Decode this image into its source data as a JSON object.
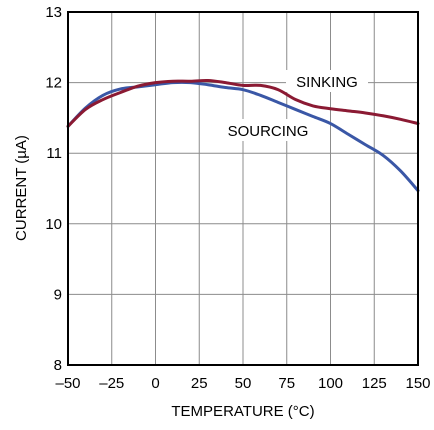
{
  "chart_data": {
    "type": "line",
    "title": "",
    "xlabel": "TEMPERATURE (°C)",
    "ylabel": "CURRENT (µA)",
    "xlim": [
      -50,
      150
    ],
    "ylim": [
      8,
      13
    ],
    "x_ticks": [
      -50,
      -25,
      0,
      25,
      50,
      75,
      100,
      125,
      150
    ],
    "x_tick_labels": [
      "–50",
      "–25",
      "0",
      "25",
      "50",
      "75",
      "100",
      "125",
      "150"
    ],
    "y_ticks": [
      8,
      9,
      10,
      11,
      12,
      13
    ],
    "y_tick_labels": [
      "8",
      "9",
      "10",
      "11",
      "12",
      "13"
    ],
    "grid": true,
    "legend": "inline labels",
    "series": [
      {
        "name": "SINKING",
        "color": "#8b1a33",
        "x": [
          -50,
          -40,
          -30,
          -20,
          -10,
          0,
          10,
          20,
          30,
          40,
          50,
          60,
          70,
          80,
          90,
          100,
          110,
          120,
          130,
          140,
          150
        ],
        "values": [
          11.38,
          11.62,
          11.76,
          11.86,
          11.95,
          12.0,
          12.02,
          12.02,
          12.03,
          12.0,
          11.96,
          11.96,
          11.9,
          11.76,
          11.67,
          11.63,
          11.6,
          11.57,
          11.53,
          11.48,
          11.42
        ]
      },
      {
        "name": "SOURCING",
        "color": "#3a57a6",
        "x": [
          -50,
          -40,
          -30,
          -20,
          -10,
          0,
          10,
          20,
          30,
          40,
          50,
          60,
          70,
          80,
          90,
          100,
          110,
          120,
          130,
          140,
          150
        ],
        "values": [
          11.38,
          11.64,
          11.82,
          11.91,
          11.94,
          11.97,
          12.0,
          12.0,
          11.97,
          11.93,
          11.9,
          11.82,
          11.72,
          11.62,
          11.52,
          11.42,
          11.27,
          11.12,
          10.97,
          10.75,
          10.47
        ]
      }
    ],
    "annotations": [
      {
        "text": "SINKING",
        "series": "SINKING"
      },
      {
        "text": "SOURCING",
        "series": "SOURCING"
      }
    ]
  }
}
